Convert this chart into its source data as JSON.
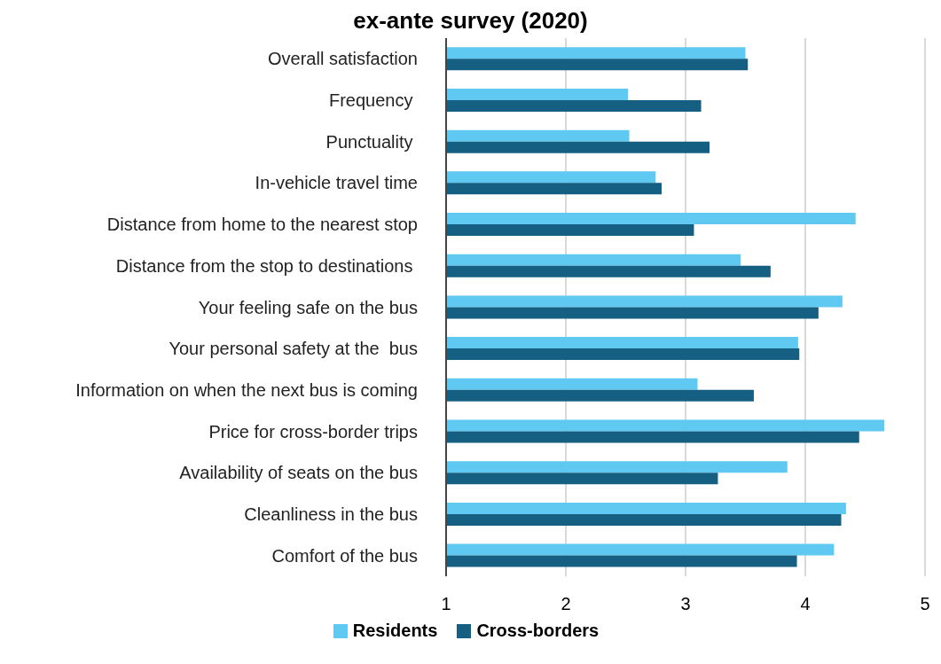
{
  "chart_data": {
    "type": "bar",
    "orientation": "horizontal",
    "title": "ex-ante survey (2020)",
    "categories": [
      "Overall satisfaction",
      "Frequency ",
      "Punctuality ",
      "In-vehicle travel time",
      "Distance from home to the nearest stop",
      "Distance from the stop to destinations ",
      "Your feeling safe on the bus",
      "Your personal safety at the  bus",
      "Information on when the next bus is coming",
      "Price for cross-border trips",
      "Availability of seats on the bus",
      "Cleanliness in the bus",
      "Comfort of the bus"
    ],
    "series": [
      {
        "name": "Residents",
        "color": "#5fc9f1",
        "values": [
          3.5,
          2.52,
          2.53,
          2.75,
          4.42,
          3.46,
          4.31,
          3.94,
          3.1,
          4.66,
          3.85,
          4.34,
          4.24
        ]
      },
      {
        "name": "Cross-borders",
        "color": "#155f82",
        "values": [
          3.52,
          3.13,
          3.2,
          2.8,
          3.07,
          3.71,
          4.11,
          3.95,
          3.57,
          4.45,
          3.27,
          4.3,
          3.93
        ]
      }
    ],
    "xlim": [
      1,
      5
    ],
    "xticks": [
      1,
      2,
      3,
      4,
      5
    ],
    "grid": "x",
    "legend": "bottom"
  }
}
